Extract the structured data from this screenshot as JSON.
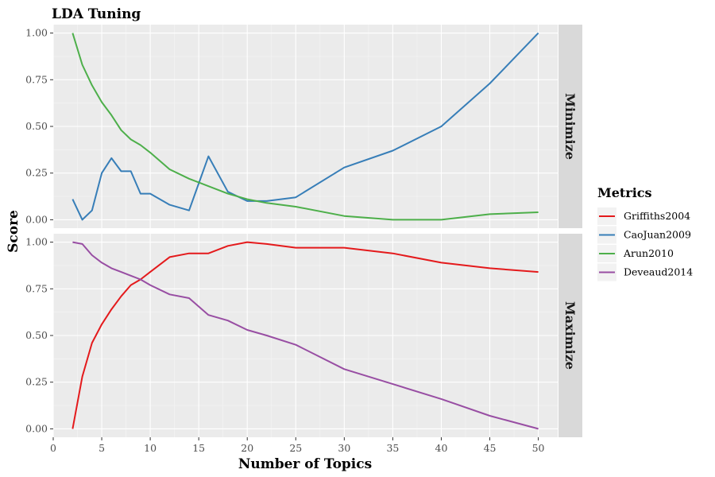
{
  "chart_data": {
    "type": "line",
    "title": "LDA Tuning",
    "xlabel": "Number of Topics",
    "ylabel": "Score",
    "legend_title": "Metrics",
    "legend_position": "right",
    "grid": true,
    "xlim": [
      0,
      52
    ],
    "ylim": [
      0,
      1
    ],
    "x_ticks": [
      "0",
      "5",
      "10",
      "15",
      "20",
      "25",
      "30",
      "35",
      "40",
      "45",
      "50"
    ],
    "y_ticks": [
      "0.00",
      "0.25",
      "0.50",
      "0.75",
      "1.00"
    ],
    "x": [
      2,
      3,
      4,
      5,
      6,
      7,
      8,
      9,
      10,
      12,
      14,
      16,
      18,
      20,
      22,
      25,
      30,
      35,
      40,
      45,
      50
    ],
    "colors": {
      "Griffiths2004": "#e41a1c",
      "CaoJuan2009": "#377eb8",
      "Arun2010": "#4daf4a",
      "Deveaud2014": "#984ea3"
    },
    "legend_entries": [
      "Griffiths2004",
      "CaoJuan2009",
      "Arun2010",
      "Deveaud2014"
    ],
    "panels": [
      {
        "strip_label": "Minimize",
        "series": [
          {
            "name": "CaoJuan2009",
            "values": [
              0.11,
              0.0,
              0.05,
              0.25,
              0.33,
              0.26,
              0.26,
              0.14,
              0.14,
              0.08,
              0.05,
              0.34,
              0.15,
              0.1,
              0.1,
              0.12,
              0.28,
              0.37,
              0.5,
              0.73,
              1.0
            ]
          },
          {
            "name": "Arun2010",
            "values": [
              1.0,
              0.83,
              0.72,
              0.63,
              0.56,
              0.48,
              0.43,
              0.4,
              0.36,
              0.27,
              0.22,
              0.18,
              0.14,
              0.11,
              0.09,
              0.07,
              0.02,
              0.0,
              0.0,
              0.03,
              0.04
            ]
          }
        ]
      },
      {
        "strip_label": "Maximize",
        "series": [
          {
            "name": "Griffiths2004",
            "values": [
              0.0,
              0.28,
              0.46,
              0.56,
              0.64,
              0.71,
              0.77,
              0.8,
              0.84,
              0.92,
              0.94,
              0.94,
              0.98,
              1.0,
              0.99,
              0.97,
              0.97,
              0.94,
              0.89,
              0.86,
              0.84
            ]
          },
          {
            "name": "Deveaud2014",
            "values": [
              1.0,
              0.99,
              0.93,
              0.89,
              0.86,
              0.84,
              0.82,
              0.8,
              0.77,
              0.72,
              0.7,
              0.61,
              0.58,
              0.53,
              0.5,
              0.45,
              0.32,
              0.24,
              0.16,
              0.07,
              0.0
            ]
          }
        ]
      }
    ]
  }
}
